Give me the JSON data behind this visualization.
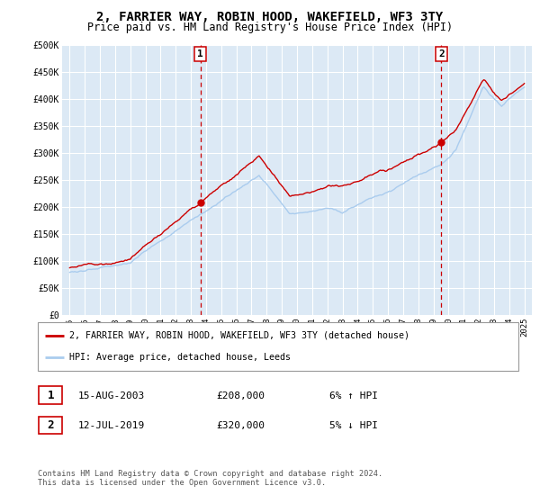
{
  "title": "2, FARRIER WAY, ROBIN HOOD, WAKEFIELD, WF3 3TY",
  "subtitle": "Price paid vs. HM Land Registry's House Price Index (HPI)",
  "legend_line1": "2, FARRIER WAY, ROBIN HOOD, WAKEFIELD, WF3 3TY (detached house)",
  "legend_line2": "HPI: Average price, detached house, Leeds",
  "transaction1_date": "15-AUG-2003",
  "transaction1_price": "£208,000",
  "transaction1_hpi": "6% ↑ HPI",
  "transaction2_date": "12-JUL-2019",
  "transaction2_price": "£320,000",
  "transaction2_hpi": "5% ↓ HPI",
  "footer": "Contains HM Land Registry data © Crown copyright and database right 2024.\nThis data is licensed under the Open Government Licence v3.0.",
  "bg_color": "#dce9f5",
  "grid_color": "#ffffff",
  "red_line_color": "#cc0000",
  "blue_line_color": "#aaccee",
  "vline_color": "#cc0000",
  "transaction1_x": 2003.62,
  "transaction2_x": 2019.53,
  "transaction1_y": 208000,
  "transaction2_y": 320000,
  "ylim": [
    0,
    500000
  ],
  "yticks": [
    0,
    50000,
    100000,
    150000,
    200000,
    250000,
    300000,
    350000,
    400000,
    450000,
    500000
  ],
  "ytick_labels": [
    "£0",
    "£50K",
    "£100K",
    "£150K",
    "£200K",
    "£250K",
    "£300K",
    "£350K",
    "£400K",
    "£450K",
    "£500K"
  ],
  "xlim_start": 1994.5,
  "xlim_end": 2025.5,
  "xticks": [
    1995,
    1996,
    1997,
    1998,
    1999,
    2000,
    2001,
    2002,
    2003,
    2004,
    2005,
    2006,
    2007,
    2008,
    2009,
    2010,
    2011,
    2012,
    2013,
    2014,
    2015,
    2016,
    2017,
    2018,
    2019,
    2020,
    2021,
    2022,
    2023,
    2024,
    2025
  ]
}
